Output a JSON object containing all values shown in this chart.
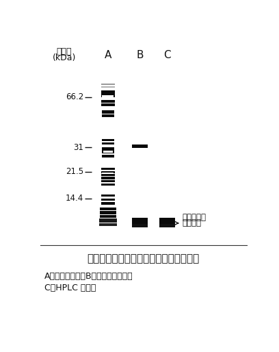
{
  "bg_color": "#ffffff",
  "title": "図１．　裸麦キチン結合ペプチドの精製",
  "subtitle1": "A：硫安塩析物、B：キチン溶出液、",
  "subtitle2": "C：HPLC 精製後",
  "label_mw": "分子量",
  "label_kda": "(kDa)",
  "lane_labels": [
    "A",
    "B",
    "C"
  ],
  "mw_markers": [
    66.2,
    31.0,
    21.5,
    14.4
  ],
  "mw_labels": [
    "66.2",
    "31",
    "21.5",
    "14.4"
  ],
  "annotation_line1": "キチン結合",
  "annotation_line2": "ペプチド",
  "band_color": "#0a0a0a"
}
